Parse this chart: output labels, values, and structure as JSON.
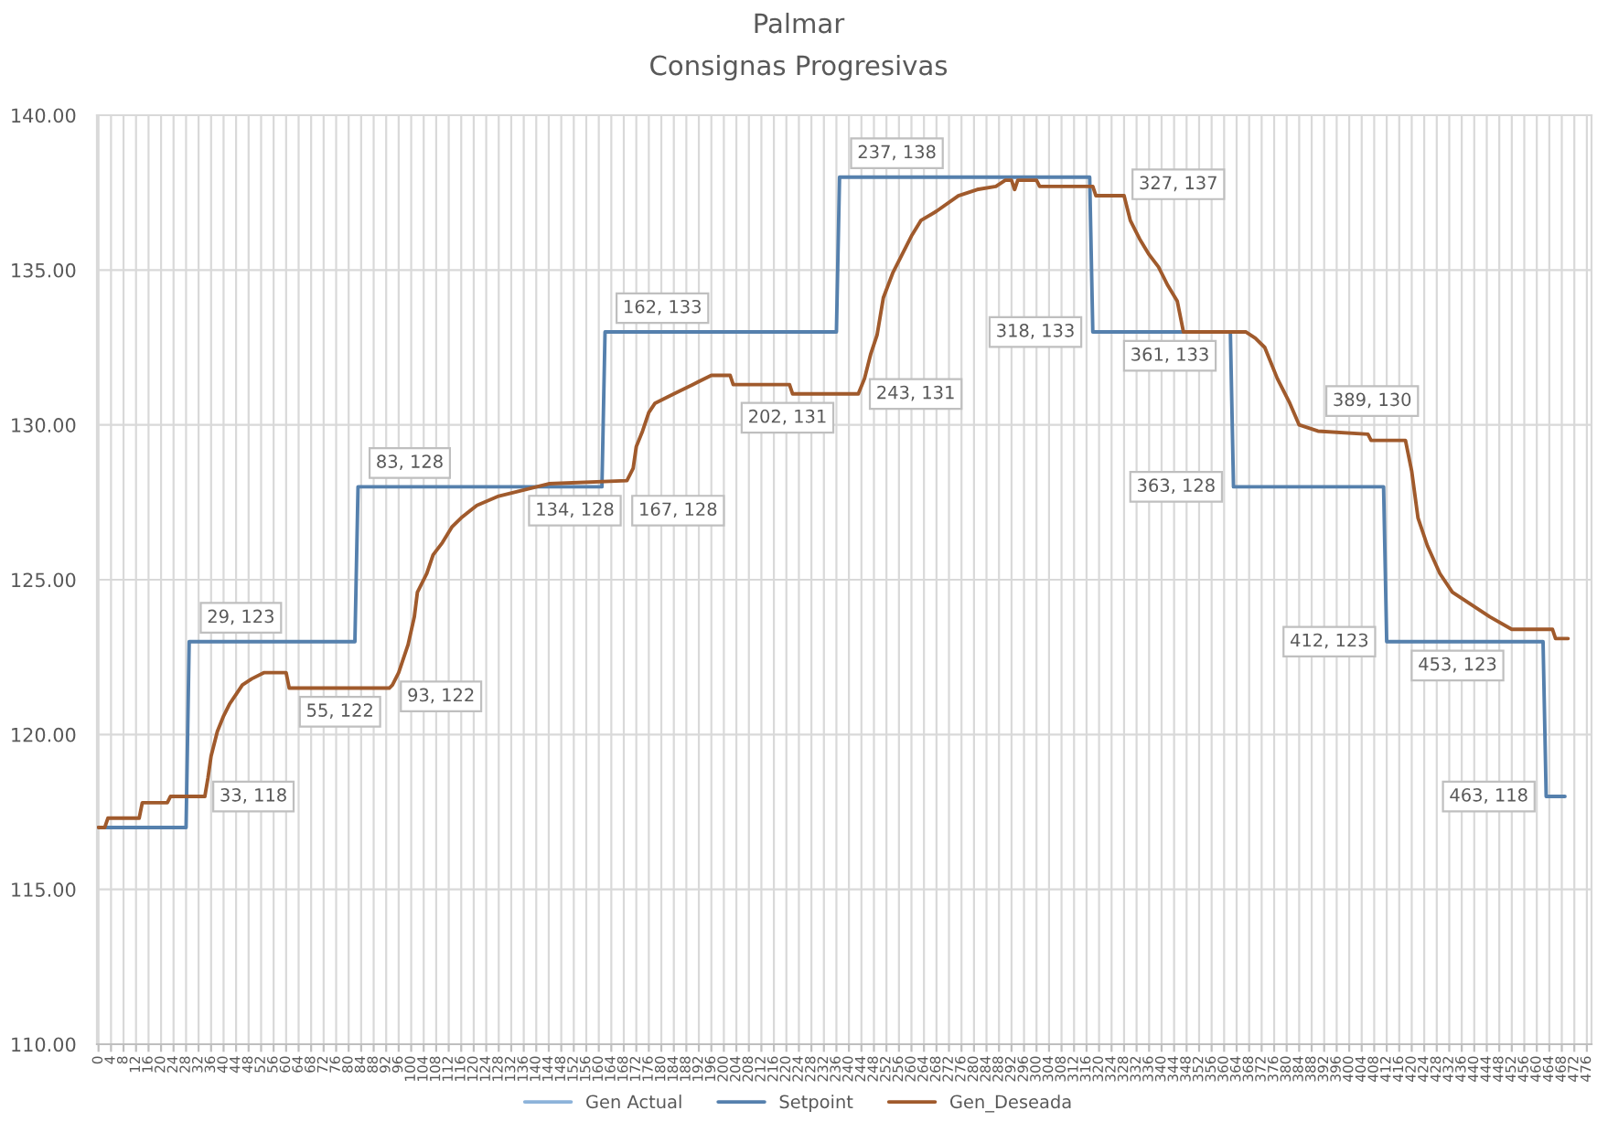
{
  "chart_data": {
    "type": "line",
    "title": "Palmar",
    "subtitle": "Consignas Progresivas",
    "xlim": [
      -0.5,
      477.5
    ],
    "xticks": [
      0,
      4,
      8,
      12,
      16,
      20,
      24,
      28,
      32,
      36,
      40,
      44,
      48,
      52,
      56,
      60,
      64,
      68,
      72,
      76,
      80,
      84,
      88,
      92,
      96,
      100,
      104,
      108,
      112,
      116,
      120,
      124,
      128,
      132,
      136,
      140,
      144,
      148,
      152,
      156,
      160,
      164,
      168,
      172,
      176,
      180,
      184,
      188,
      192,
      196,
      200,
      204,
      208,
      212,
      216,
      220,
      224,
      228,
      232,
      236,
      240,
      244,
      248,
      252,
      256,
      260,
      264,
      268,
      272,
      276,
      280,
      284,
      288,
      292,
      296,
      300,
      304,
      308,
      312,
      316,
      320,
      324,
      328,
      332,
      336,
      340,
      344,
      348,
      352,
      356,
      360,
      364,
      368,
      372,
      376,
      380,
      384,
      388,
      392,
      396,
      400,
      404,
      408,
      412,
      416,
      420,
      424,
      428,
      432,
      436,
      440,
      444,
      448,
      452,
      456,
      460,
      464,
      468,
      472,
      476
    ],
    "ylim": [
      110,
      140
    ],
    "yticks": [
      {
        "value": 110,
        "label": "110.00"
      },
      {
        "value": 115,
        "label": "115.00"
      },
      {
        "value": 120,
        "label": "120.00"
      },
      {
        "value": 125,
        "label": "125.00"
      },
      {
        "value": 130,
        "label": "130.00"
      },
      {
        "value": 135,
        "label": "135.00"
      },
      {
        "value": 140,
        "label": "140.00"
      }
    ],
    "grid": true,
    "legend": "bottom",
    "series": [
      {
        "name": "Gen Actual",
        "color": "#8db3da"
      },
      {
        "name": "Setpoint",
        "color": "#5580ad",
        "x": [
          0,
          28,
          29,
          82,
          83,
          161,
          162,
          236,
          237,
          317,
          318,
          362,
          363,
          411,
          412,
          462,
          463,
          469
        ],
        "values": [
          117,
          117,
          123,
          123,
          128,
          128,
          133,
          133,
          138,
          138,
          133,
          133,
          128,
          128,
          123,
          123,
          118,
          118
        ]
      },
      {
        "name": "Gen_Deseada",
        "color": "#a05a2c",
        "x": [
          0,
          2,
          3,
          13,
          14,
          22,
          23,
          34,
          35,
          36,
          38,
          40,
          42,
          44,
          46,
          49,
          53,
          60,
          61,
          93,
          94,
          96,
          97,
          99,
          101,
          102,
          105,
          107,
          110,
          113,
          116,
          121,
          128,
          136,
          144,
          169,
          171,
          172,
          174,
          176,
          178,
          184,
          190,
          196,
          202,
          203,
          221,
          222,
          243,
          245,
          247,
          249,
          251,
          254,
          257,
          260,
          263,
          268,
          275,
          281,
          287,
          290,
          292,
          293,
          294,
          300,
          301,
          318,
          319,
          328,
          330,
          333,
          336,
          339,
          342,
          345,
          347,
          367,
          370,
          373,
          377,
          381,
          384,
          390,
          406,
          407,
          418,
          420,
          422,
          425,
          429,
          433,
          439,
          445,
          452,
          465,
          466,
          470
        ],
        "values": [
          117.0,
          117.0,
          117.3,
          117.3,
          117.8,
          117.8,
          118.0,
          118.0,
          118.6,
          119.3,
          120.1,
          120.6,
          121.0,
          121.3,
          121.6,
          121.8,
          122.0,
          122.0,
          121.5,
          121.5,
          121.6,
          122.0,
          122.3,
          122.9,
          123.8,
          124.6,
          125.2,
          125.8,
          126.2,
          126.7,
          127.0,
          127.4,
          127.7,
          127.9,
          128.1,
          128.2,
          128.6,
          129.3,
          129.8,
          130.4,
          130.7,
          131.0,
          131.3,
          131.6,
          131.6,
          131.3,
          131.3,
          131.0,
          131.0,
          131.5,
          132.3,
          132.9,
          134.1,
          134.9,
          135.5,
          136.1,
          136.6,
          136.9,
          137.4,
          137.6,
          137.7,
          137.9,
          137.9,
          137.6,
          137.9,
          137.9,
          137.7,
          137.7,
          137.4,
          137.4,
          136.6,
          136.0,
          135.5,
          135.1,
          134.5,
          134.0,
          133.0,
          133.0,
          132.8,
          132.5,
          131.5,
          130.7,
          130.0,
          129.8,
          129.7,
          129.5,
          129.5,
          128.5,
          127.0,
          126.1,
          125.2,
          124.6,
          124.2,
          123.8,
          123.4,
          123.4,
          123.1,
          123.1
        ]
      }
    ],
    "annotations": [
      {
        "text": "29, 123",
        "x": 29,
        "y": 123
      },
      {
        "text": "33, 118",
        "x": 33,
        "y": 118
      },
      {
        "text": "55, 122",
        "x": 55,
        "y": 122
      },
      {
        "text": "83, 128",
        "x": 83,
        "y": 128
      },
      {
        "text": "93, 122",
        "x": 93,
        "y": 122
      },
      {
        "text": "134, 128",
        "x": 134,
        "y": 128
      },
      {
        "text": "162, 133",
        "x": 162,
        "y": 133
      },
      {
        "text": "167, 128",
        "x": 167,
        "y": 128
      },
      {
        "text": "202, 131",
        "x": 202,
        "y": 131
      },
      {
        "text": "237, 138",
        "x": 237,
        "y": 138
      },
      {
        "text": "243, 131",
        "x": 243,
        "y": 131
      },
      {
        "text": "318, 133",
        "x": 318,
        "y": 133
      },
      {
        "text": "327, 137",
        "x": 327,
        "y": 137
      },
      {
        "text": "361, 133",
        "x": 361,
        "y": 133
      },
      {
        "text": "363, 128",
        "x": 363,
        "y": 128
      },
      {
        "text": "389, 130",
        "x": 389,
        "y": 130
      },
      {
        "text": "412, 123",
        "x": 412,
        "y": 123
      },
      {
        "text": "453, 123",
        "x": 453,
        "y": 123
      },
      {
        "text": "463, 118",
        "x": 463,
        "y": 118
      }
    ]
  }
}
